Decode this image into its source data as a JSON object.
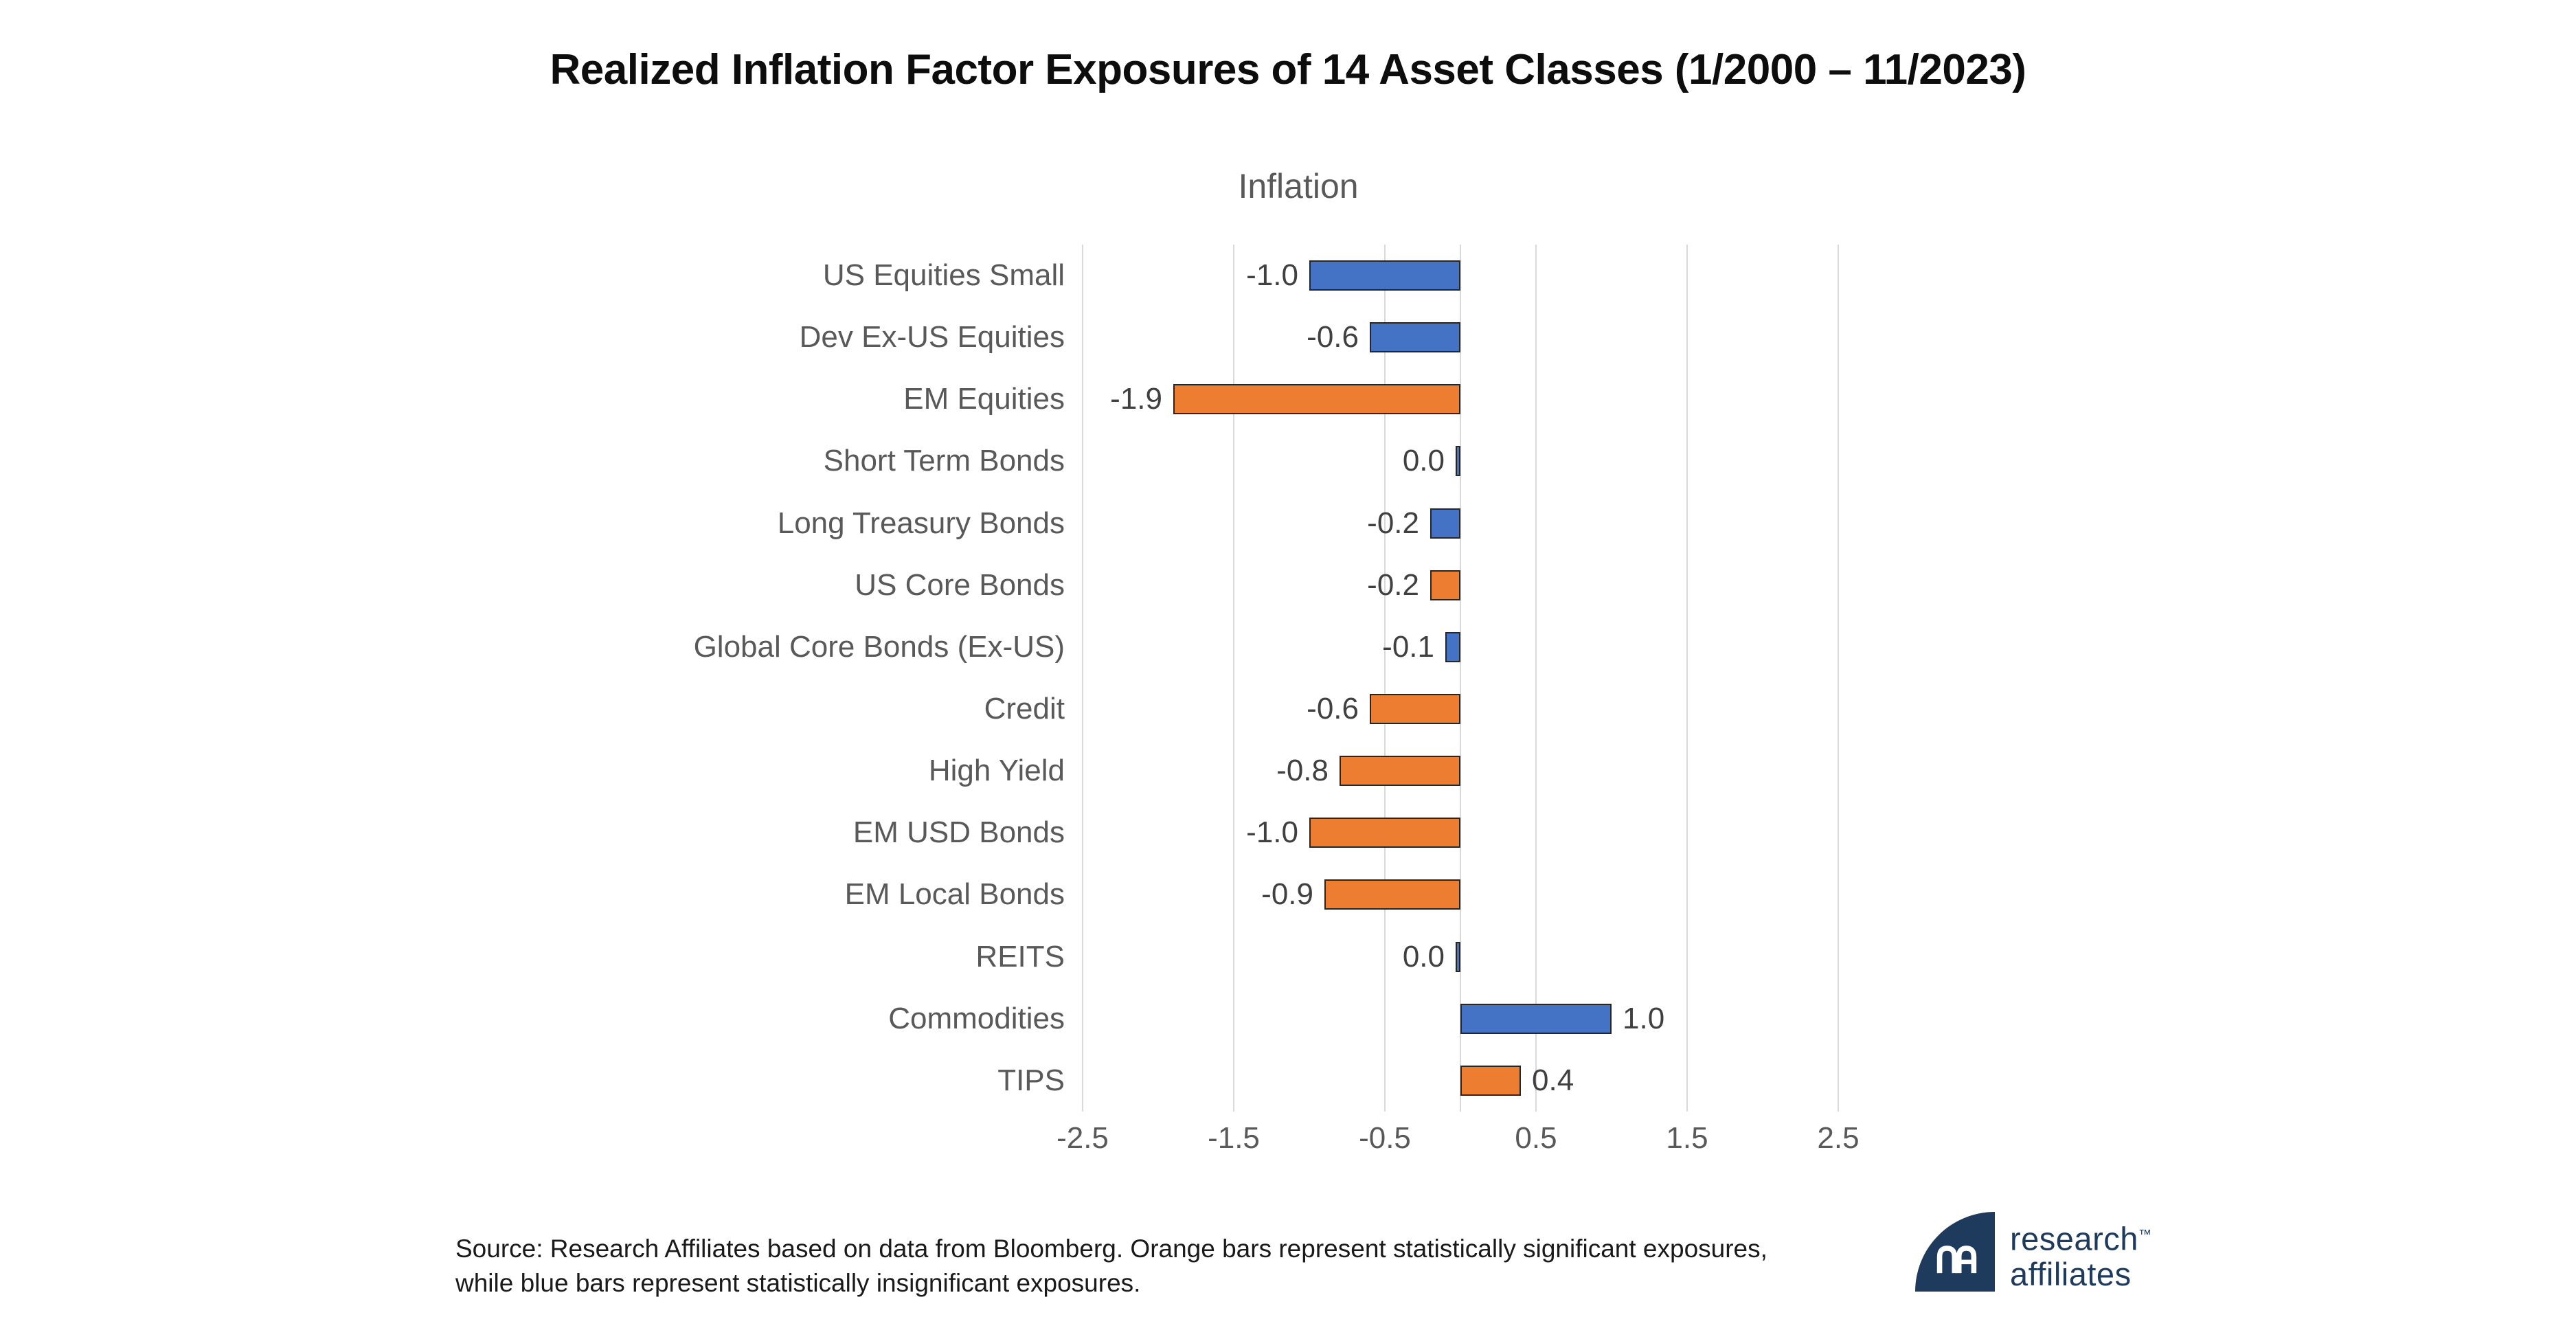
{
  "page": {
    "title": "Realized Inflation Factor Exposures of 14 Asset Classes (1/2000 – 11/2023)"
  },
  "chart_data": {
    "type": "bar",
    "orientation": "horizontal",
    "title": "Inflation",
    "categories": [
      "US Equities Small",
      "Dev Ex-US Equities",
      "EM Equities",
      "Short Term Bonds",
      "Long Treasury Bonds",
      "US Core Bonds",
      "Global Core Bonds (Ex-US)",
      "Credit",
      "High Yield",
      "EM USD Bonds",
      "EM Local Bonds",
      "REITS",
      "Commodities",
      "TIPS"
    ],
    "values": [
      -1.0,
      -0.6,
      -1.9,
      0.0,
      -0.2,
      -0.2,
      -0.1,
      -0.6,
      -0.8,
      -1.0,
      -0.9,
      0.0,
      1.0,
      0.4
    ],
    "display_values": [
      "-1.0",
      "-0.6",
      "-1.9",
      "0.0",
      "-0.2",
      "-0.2",
      "-0.1",
      "-0.6",
      "-0.8",
      "-1.0",
      "-0.9",
      "0.0",
      "1.0",
      "0.4"
    ],
    "bar_colors": [
      "blue",
      "blue",
      "orange",
      "blue",
      "blue",
      "orange",
      "blue",
      "orange",
      "orange",
      "orange",
      "orange",
      "blue",
      "blue",
      "orange"
    ],
    "color_meaning": {
      "orange": "statistically significant exposure",
      "blue": "statistically insignificant exposure"
    },
    "xticks": [
      -2.5,
      -1.5,
      -0.5,
      0.5,
      1.5,
      2.5
    ],
    "xtick_labels": [
      "-2.5",
      "-1.5",
      "-0.5",
      "0.5",
      "1.5",
      "2.5"
    ],
    "xlim": [
      -2.55,
      3.0
    ],
    "grid": "vertical-gridlines-on",
    "zero_axis_line": true,
    "legend": "none",
    "palette": {
      "blue": "#4472C4",
      "orange": "#ED7D31",
      "bar_border": "#262626",
      "gridline": "#D9D9D9",
      "title_text": "#0D0D0D",
      "label_text": "#595959",
      "value_text": "#404040"
    }
  },
  "footer": {
    "source_line1": "Source: Research Affiliates based on data from Bloomberg. Orange bars represent statistically significant exposures,",
    "source_line2": "while blue bars represent statistically insignificant exposures.",
    "logo": {
      "monogram": "RA",
      "line1": "research",
      "trademark": "™",
      "line2": "affiliates",
      "color": "#1E3A5C"
    }
  }
}
